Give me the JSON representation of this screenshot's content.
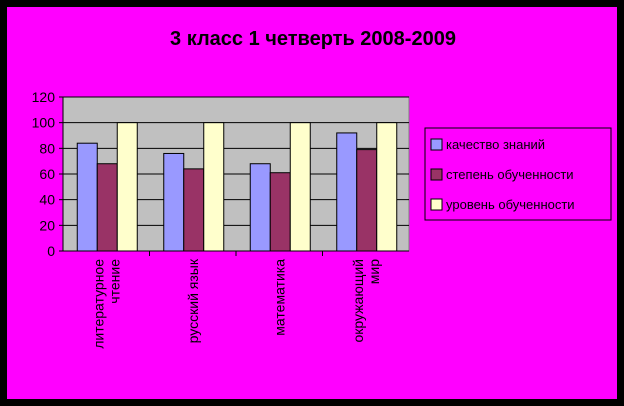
{
  "chart_data": {
    "type": "bar",
    "title": "3 класс  1 четверть  2008-2009",
    "categories": [
      [
        "литературное",
        "чтение"
      ],
      [
        "русский язык"
      ],
      [
        "математика"
      ],
      [
        "окружающий",
        "мир"
      ]
    ],
    "series": [
      {
        "name": "качество знаний",
        "color": "#9999FF",
        "values": [
          84,
          76,
          68,
          92
        ]
      },
      {
        "name": "степень обученности",
        "color": "#993366",
        "values": [
          68,
          64,
          61,
          79
        ]
      },
      {
        "name": "уровень обученности",
        "color": "#FFFFCC",
        "values": [
          100,
          100,
          100,
          100
        ]
      }
    ],
    "ylim": [
      0,
      120
    ],
    "yticks": [
      0,
      20,
      40,
      60,
      80,
      100,
      120
    ],
    "plot_background": "#C0C0C0",
    "page_background": "#FF00FF",
    "grid": true,
    "legend_position": "right"
  }
}
